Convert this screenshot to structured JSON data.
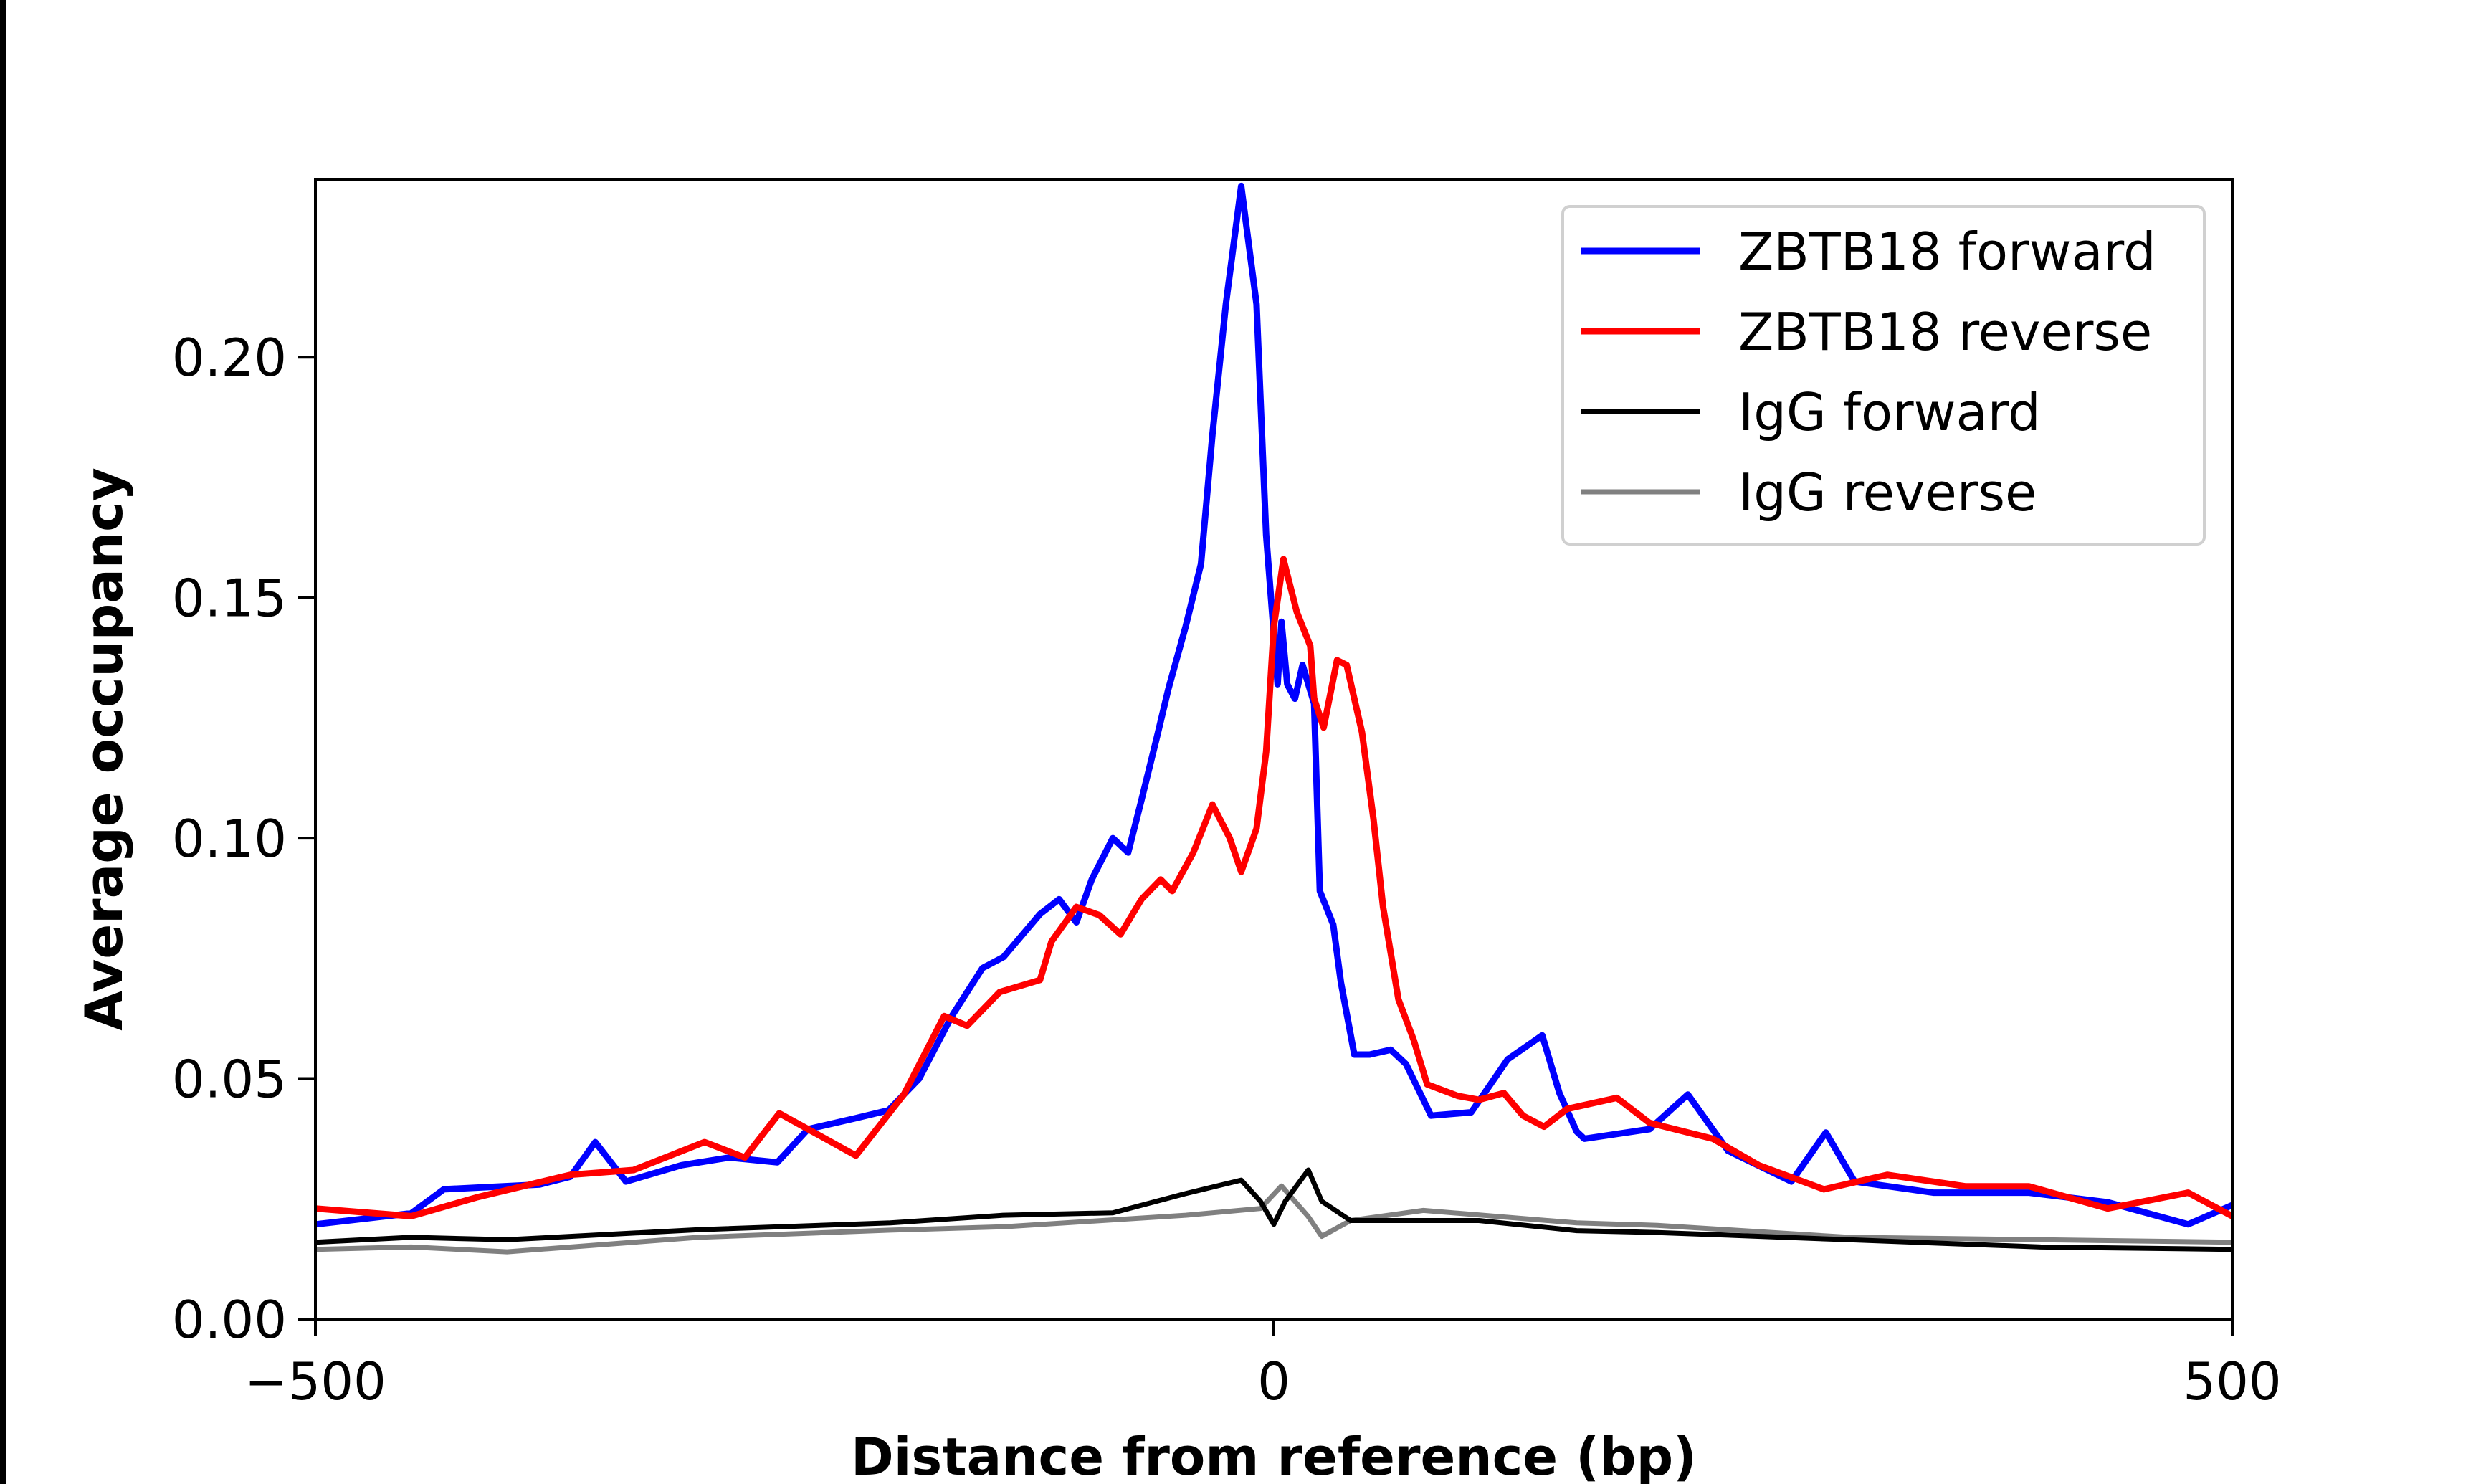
{
  "chart_data": {
    "type": "line",
    "xlabel": "Distance from reference (bp)",
    "ylabel": "Average occupancy",
    "xlim": [
      -500,
      500
    ],
    "ylim": [
      0,
      0.237
    ],
    "xticks": [
      -500,
      0,
      500
    ],
    "xtick_labels": [
      "−500",
      "0",
      "500"
    ],
    "yticks": [
      0,
      0.05,
      0.1,
      0.15,
      0.2
    ],
    "ytick_labels": [
      "0.00",
      "0.05",
      "0.10",
      "0.15",
      "0.20"
    ],
    "grid": false,
    "legend_position": "top-right",
    "series": [
      {
        "name": "ZBTB18 forward",
        "color": "#0000ff",
        "x": [
          -500,
          -450,
          -433,
          -383,
          -367,
          -354,
          -338,
          -309,
          -284,
          -259,
          -243,
          -218,
          -201,
          -185,
          -168,
          -152,
          -141,
          -122,
          -112,
          -103,
          -95,
          -84,
          -76,
          -69,
          -61,
          -55,
          -46,
          -38,
          -32,
          -25,
          -17,
          -9,
          -4,
          2,
          4,
          7,
          11,
          15,
          21,
          24,
          31,
          35,
          42,
          50,
          61,
          69,
          82,
          103,
          122,
          140,
          149,
          158,
          162,
          196,
          216,
          237,
          270,
          288,
          303,
          344,
          394,
          435,
          477,
          500
        ],
        "y": [
          0.0197,
          0.022,
          0.027,
          0.028,
          0.0296,
          0.0368,
          0.0286,
          0.032,
          0.0336,
          0.0326,
          0.0395,
          0.0418,
          0.0434,
          0.05,
          0.063,
          0.073,
          0.0753,
          0.0842,
          0.0873,
          0.0825,
          0.0914,
          0.1,
          0.097,
          0.108,
          0.121,
          0.131,
          0.144,
          0.157,
          0.184,
          0.211,
          0.2356,
          0.211,
          0.163,
          0.132,
          0.145,
          0.132,
          0.129,
          0.136,
          0.128,
          0.089,
          0.082,
          0.07,
          0.055,
          0.055,
          0.056,
          0.053,
          0.0423,
          0.043,
          0.054,
          0.059,
          0.047,
          0.039,
          0.0375,
          0.0395,
          0.0467,
          0.035,
          0.0286,
          0.0388,
          0.0286,
          0.0263,
          0.0263,
          0.0243,
          0.0197,
          0.0237
        ]
      },
      {
        "name": "ZBTB18 reverse",
        "color": "#ff0000",
        "x": [
          -500,
          -450,
          -416,
          -367,
          -334,
          -297,
          -276,
          -258,
          -243,
          -218,
          -193,
          -172,
          -160,
          -143,
          -122,
          -116,
          -103,
          -91,
          -80,
          -69,
          -59,
          -53,
          -42,
          -32,
          -23,
          -17,
          -9,
          -4,
          0,
          5,
          12,
          19,
          21,
          26,
          33,
          38,
          46,
          52,
          57,
          65,
          73,
          80,
          96,
          107,
          120,
          130,
          141,
          153,
          179,
          196,
          229,
          253,
          287,
          320,
          361,
          394,
          435,
          477,
          500
        ],
        "y": [
          0.023,
          0.0214,
          0.0253,
          0.03,
          0.031,
          0.0368,
          0.0336,
          0.0428,
          0.0395,
          0.034,
          0.0467,
          0.063,
          0.061,
          0.068,
          0.0705,
          0.0785,
          0.0857,
          0.084,
          0.08,
          0.0873,
          0.0914,
          0.089,
          0.097,
          0.107,
          0.1,
          0.093,
          0.102,
          0.118,
          0.144,
          0.158,
          0.147,
          0.14,
          0.129,
          0.123,
          0.137,
          0.136,
          0.122,
          0.104,
          0.0857,
          0.0665,
          0.058,
          0.0488,
          0.0464,
          0.0456,
          0.047,
          0.0423,
          0.04,
          0.0437,
          0.046,
          0.0408,
          0.0375,
          0.032,
          0.027,
          0.03,
          0.0276,
          0.0276,
          0.023,
          0.0263,
          0.0214
        ]
      },
      {
        "name": "IgG forward",
        "color": "#000000",
        "x": [
          -500,
          -450,
          -400,
          -300,
          -200,
          -141,
          -84,
          -46,
          -17,
          -7,
          0,
          6,
          18,
          25,
          40,
          107,
          158,
          200,
          300,
          400,
          500
        ],
        "y": [
          0.016,
          0.017,
          0.0165,
          0.0186,
          0.02,
          0.0216,
          0.0221,
          0.0261,
          0.0289,
          0.0245,
          0.0197,
          0.0245,
          0.031,
          0.0245,
          0.0205,
          0.0205,
          0.0184,
          0.018,
          0.0165,
          0.015,
          0.0145
        ]
      },
      {
        "name": "IgG reverse",
        "color": "#808080",
        "x": [
          -500,
          -450,
          -400,
          -300,
          -200,
          -141,
          -46,
          -7,
          4,
          18,
          25,
          40,
          78,
          158,
          200,
          300,
          400,
          500
        ],
        "y": [
          0.0145,
          0.015,
          0.014,
          0.017,
          0.0185,
          0.0192,
          0.0216,
          0.023,
          0.0277,
          0.0213,
          0.0172,
          0.0205,
          0.0226,
          0.02,
          0.0195,
          0.017,
          0.0165,
          0.016
        ]
      }
    ]
  }
}
